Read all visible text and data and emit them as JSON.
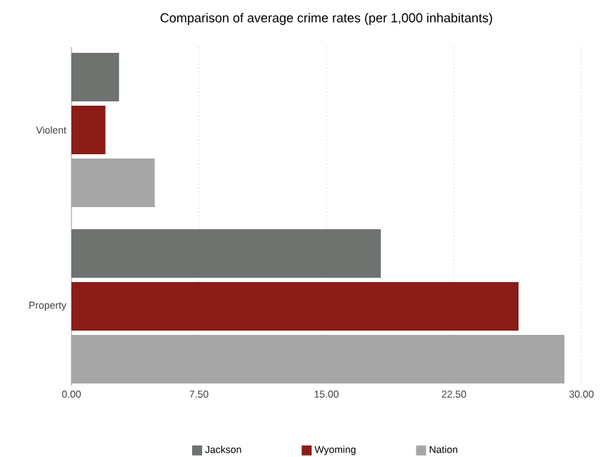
{
  "chart_data": {
    "type": "bar",
    "orientation": "horizontal",
    "title": "Comparison of average crime rates (per 1,000 inhabitants)",
    "categories": [
      "Violent",
      "Property"
    ],
    "series": [
      {
        "name": "Jackson",
        "color": "#6f7370",
        "values": [
          2.8,
          18.2
        ]
      },
      {
        "name": "Wyoming",
        "color": "#8b1c17",
        "values": [
          2.0,
          26.3
        ]
      },
      {
        "name": "Nation",
        "color": "#a6a6a6",
        "values": [
          4.9,
          29.0
        ]
      }
    ],
    "xlim": [
      0,
      30
    ],
    "xticks": [
      {
        "value": 0,
        "label": "0.00"
      },
      {
        "value": 7.5,
        "label": "7.50"
      },
      {
        "value": 15,
        "label": "15.00"
      },
      {
        "value": 22.5,
        "label": "22.50"
      },
      {
        "value": 30,
        "label": "30.00"
      }
    ],
    "grid": "x",
    "legend": "bottom"
  }
}
